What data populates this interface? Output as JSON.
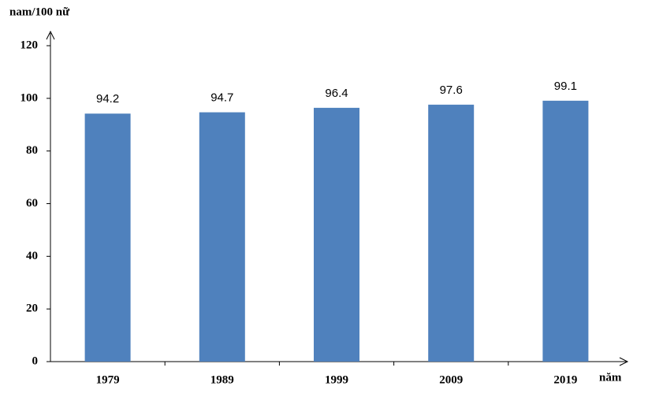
{
  "chart_data": {
    "type": "bar",
    "y_label": "nam/100 nữ",
    "x_label": "năm",
    "categories": [
      "1979",
      "1989",
      "1999",
      "2009",
      "2019"
    ],
    "values": [
      94.2,
      94.7,
      96.4,
      97.6,
      99.1
    ],
    "color": "#4f81bd",
    "ylim": [
      0,
      120
    ],
    "yticks": [
      0,
      20,
      40,
      60,
      80,
      100,
      120
    ],
    "grid": false
  }
}
